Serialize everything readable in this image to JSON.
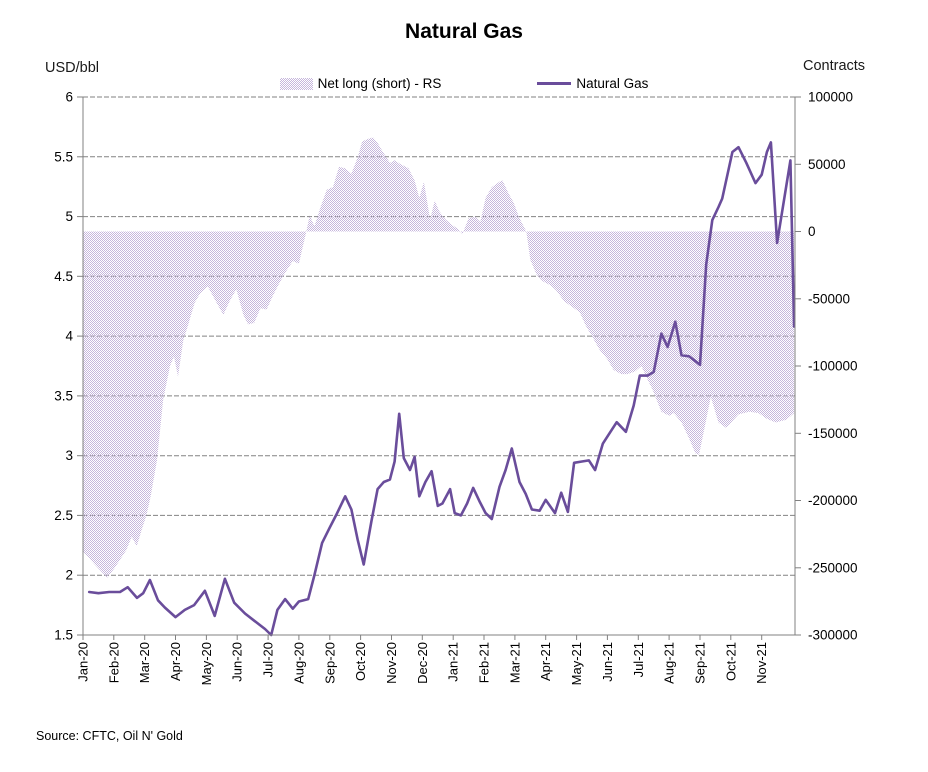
{
  "title": "Natural Gas",
  "source": "Source: CFTC, Oil N' Gold",
  "left_axis": {
    "label": "USD/bbl",
    "min": 1.5,
    "max": 6,
    "step": 0.5,
    "ticks": [
      "6",
      "5.5",
      "5",
      "4.5",
      "4",
      "3.5",
      "3",
      "2.5",
      "2",
      "1.5"
    ]
  },
  "right_axis": {
    "label": "Contracts",
    "min": -300000,
    "max": 100000,
    "step": 50000,
    "ticks": [
      "100000",
      "50000",
      "0",
      "-50000",
      "-100000",
      "-150000",
      "-200000",
      "-250000",
      "-300000"
    ]
  },
  "legend": [
    {
      "label": "Net long (short) - RS",
      "type": "area"
    },
    {
      "label": "Natural Gas",
      "type": "line"
    }
  ],
  "colors": {
    "line": "#6a4d9b",
    "area_fill": "#c6b6dc",
    "gridline": "#828282",
    "axis": "#808080",
    "text": "#000000"
  },
  "chart_data": {
    "type": "combo (area + line)",
    "title": "Natural Gas",
    "x_unit": "months since Jan-2020 (weekly samples)",
    "categories": [
      "Jan-20",
      "Feb-20",
      "Mar-20",
      "Apr-20",
      "May-20",
      "Jun-20",
      "Jul-20",
      "Aug-20",
      "Sep-20",
      "Oct-20",
      "Nov-20",
      "Dec-20",
      "Jan-21",
      "Feb-21",
      "Mar-21",
      "Apr-21",
      "May-21",
      "Jun-21",
      "Jul-21",
      "Aug-21",
      "Sep-21",
      "Oct-21",
      "Nov-21"
    ],
    "xlim": [
      0,
      23.08
    ],
    "ylim_left": [
      1.5,
      6
    ],
    "ylim_right": [
      -300000,
      100000
    ],
    "grid": "horizontal, every 0.5 USD",
    "legend_position": "top-center",
    "series": [
      {
        "name": "Net long (short) - RS",
        "type": "area",
        "axis": "right",
        "baseline": 0,
        "points": [
          [
            0.0,
            -238000
          ],
          [
            0.2,
            -243000
          ],
          [
            0.4,
            -248000
          ],
          [
            0.6,
            -253000
          ],
          [
            0.78,
            -257500
          ],
          [
            1.0,
            -251000
          ],
          [
            1.2,
            -244000
          ],
          [
            1.4,
            -237000
          ],
          [
            1.58,
            -227000
          ],
          [
            1.74,
            -234000
          ],
          [
            1.9,
            -222000
          ],
          [
            2.06,
            -211000
          ],
          [
            2.2,
            -196000
          ],
          [
            2.4,
            -170000
          ],
          [
            2.6,
            -125000
          ],
          [
            2.82,
            -100000
          ],
          [
            2.95,
            -93000
          ],
          [
            3.08,
            -108000
          ],
          [
            3.25,
            -81000
          ],
          [
            3.4,
            -70000
          ],
          [
            3.62,
            -53000
          ],
          [
            3.8,
            -46000
          ],
          [
            4.05,
            -41000
          ],
          [
            4.33,
            -53000
          ],
          [
            4.55,
            -62000
          ],
          [
            4.75,
            -52000
          ],
          [
            4.97,
            -43000
          ],
          [
            5.2,
            -62000
          ],
          [
            5.35,
            -69000
          ],
          [
            5.55,
            -68000
          ],
          [
            5.75,
            -57000
          ],
          [
            5.95,
            -58000
          ],
          [
            6.15,
            -48000
          ],
          [
            6.35,
            -39000
          ],
          [
            6.6,
            -29000
          ],
          [
            6.8,
            -22000
          ],
          [
            7.0,
            -24000
          ],
          [
            7.12,
            -12000
          ],
          [
            7.22,
            -2000
          ],
          [
            7.35,
            12000
          ],
          [
            7.5,
            4000
          ],
          [
            7.7,
            18000
          ],
          [
            7.9,
            31000
          ],
          [
            8.1,
            33000
          ],
          [
            8.3,
            48000
          ],
          [
            8.5,
            47000
          ],
          [
            8.7,
            43000
          ],
          [
            8.9,
            55000
          ],
          [
            9.05,
            67000
          ],
          [
            9.25,
            69000
          ],
          [
            9.4,
            70000
          ],
          [
            9.55,
            66000
          ],
          [
            9.7,
            60000
          ],
          [
            9.95,
            51000
          ],
          [
            10.1,
            53000
          ],
          [
            10.3,
            50000
          ],
          [
            10.55,
            47000
          ],
          [
            10.75,
            38000
          ],
          [
            10.9,
            25000
          ],
          [
            11.05,
            37000
          ],
          [
            11.25,
            9000
          ],
          [
            11.4,
            23000
          ],
          [
            11.55,
            15000
          ],
          [
            11.75,
            9000
          ],
          [
            11.95,
            5000
          ],
          [
            12.15,
            2000
          ],
          [
            12.3,
            -2000
          ],
          [
            12.5,
            10000
          ],
          [
            12.72,
            11000
          ],
          [
            12.88,
            7000
          ],
          [
            13.05,
            25000
          ],
          [
            13.25,
            33000
          ],
          [
            13.5,
            37000
          ],
          [
            13.6,
            38000
          ],
          [
            13.8,
            28000
          ],
          [
            13.95,
            22000
          ],
          [
            14.15,
            10000
          ],
          [
            14.37,
            0
          ],
          [
            14.5,
            -21000
          ],
          [
            14.7,
            -32000
          ],
          [
            14.9,
            -37000
          ],
          [
            15.15,
            -40000
          ],
          [
            15.35,
            -44000
          ],
          [
            15.6,
            -52000
          ],
          [
            15.85,
            -56000
          ],
          [
            16.1,
            -60000
          ],
          [
            16.3,
            -70000
          ],
          [
            16.55,
            -80000
          ],
          [
            16.75,
            -88000
          ],
          [
            17.0,
            -95000
          ],
          [
            17.2,
            -103000
          ],
          [
            17.45,
            -106000
          ],
          [
            17.65,
            -106000
          ],
          [
            17.9,
            -104000
          ],
          [
            18.1,
            -100000
          ],
          [
            18.3,
            -110000
          ],
          [
            18.45,
            -117000
          ],
          [
            18.75,
            -134000
          ],
          [
            19.0,
            -137000
          ],
          [
            19.15,
            -135000
          ],
          [
            19.4,
            -142000
          ],
          [
            19.65,
            -154000
          ],
          [
            19.85,
            -165000
          ],
          [
            19.97,
            -166000
          ],
          [
            20.2,
            -140000
          ],
          [
            20.35,
            -123000
          ],
          [
            20.6,
            -142000
          ],
          [
            20.85,
            -146000
          ],
          [
            21.05,
            -141000
          ],
          [
            21.25,
            -136000
          ],
          [
            21.6,
            -134000
          ],
          [
            21.9,
            -135000
          ],
          [
            22.15,
            -139000
          ],
          [
            22.45,
            -142000
          ],
          [
            22.8,
            -140000
          ],
          [
            23.05,
            -135000
          ]
        ]
      },
      {
        "name": "Natural Gas",
        "type": "line",
        "axis": "left",
        "points": [
          [
            0.2,
            1.86
          ],
          [
            0.5,
            1.85
          ],
          [
            0.85,
            1.86
          ],
          [
            1.2,
            1.86
          ],
          [
            1.45,
            1.9
          ],
          [
            1.75,
            1.81
          ],
          [
            1.95,
            1.85
          ],
          [
            2.17,
            1.96
          ],
          [
            2.43,
            1.79
          ],
          [
            2.65,
            1.73
          ],
          [
            3.0,
            1.65
          ],
          [
            3.3,
            1.71
          ],
          [
            3.6,
            1.75
          ],
          [
            3.95,
            1.87
          ],
          [
            4.27,
            1.66
          ],
          [
            4.6,
            1.97
          ],
          [
            4.9,
            1.77
          ],
          [
            5.25,
            1.68
          ],
          [
            5.55,
            1.62
          ],
          [
            5.9,
            1.55
          ],
          [
            6.1,
            1.5
          ],
          [
            6.3,
            1.71
          ],
          [
            6.55,
            1.8
          ],
          [
            6.8,
            1.72
          ],
          [
            7.0,
            1.78
          ],
          [
            7.3,
            1.8
          ],
          [
            7.5,
            2.0
          ],
          [
            7.75,
            2.27
          ],
          [
            8.0,
            2.4
          ],
          [
            8.2,
            2.5
          ],
          [
            8.5,
            2.66
          ],
          [
            8.7,
            2.55
          ],
          [
            8.9,
            2.3
          ],
          [
            9.1,
            2.09
          ],
          [
            9.35,
            2.45
          ],
          [
            9.55,
            2.72
          ],
          [
            9.75,
            2.78
          ],
          [
            9.95,
            2.8
          ],
          [
            10.1,
            2.95
          ],
          [
            10.25,
            3.35
          ],
          [
            10.4,
            2.98
          ],
          [
            10.6,
            2.88
          ],
          [
            10.75,
            2.99
          ],
          [
            10.9,
            2.66
          ],
          [
            11.1,
            2.78
          ],
          [
            11.3,
            2.87
          ],
          [
            11.5,
            2.58
          ],
          [
            11.65,
            2.6
          ],
          [
            11.9,
            2.72
          ],
          [
            12.05,
            2.52
          ],
          [
            12.25,
            2.5
          ],
          [
            12.45,
            2.6
          ],
          [
            12.65,
            2.73
          ],
          [
            12.85,
            2.62
          ],
          [
            13.05,
            2.52
          ],
          [
            13.25,
            2.47
          ],
          [
            13.5,
            2.74
          ],
          [
            13.7,
            2.88
          ],
          [
            13.9,
            3.06
          ],
          [
            14.15,
            2.78
          ],
          [
            14.35,
            2.68
          ],
          [
            14.55,
            2.55
          ],
          [
            14.8,
            2.54
          ],
          [
            15.0,
            2.63
          ],
          [
            15.3,
            2.52
          ],
          [
            15.5,
            2.69
          ],
          [
            15.72,
            2.53
          ],
          [
            15.92,
            2.94
          ],
          [
            16.15,
            2.95
          ],
          [
            16.4,
            2.96
          ],
          [
            16.6,
            2.88
          ],
          [
            16.85,
            3.1
          ],
          [
            17.05,
            3.18
          ],
          [
            17.3,
            3.28
          ],
          [
            17.6,
            3.2
          ],
          [
            17.85,
            3.42
          ],
          [
            18.05,
            3.67
          ],
          [
            18.3,
            3.67
          ],
          [
            18.5,
            3.7
          ],
          [
            18.75,
            4.02
          ],
          [
            18.95,
            3.91
          ],
          [
            19.2,
            4.12
          ],
          [
            19.4,
            3.84
          ],
          [
            19.65,
            3.83
          ],
          [
            19.85,
            3.79
          ],
          [
            20.0,
            3.76
          ],
          [
            20.2,
            4.6
          ],
          [
            20.4,
            4.97
          ],
          [
            20.6,
            5.08
          ],
          [
            20.72,
            5.15
          ],
          [
            21.05,
            5.54
          ],
          [
            21.25,
            5.58
          ],
          [
            21.5,
            5.45
          ],
          [
            21.8,
            5.28
          ],
          [
            22.0,
            5.35
          ],
          [
            22.17,
            5.54
          ],
          [
            22.3,
            5.62
          ],
          [
            22.5,
            4.78
          ],
          [
            22.93,
            5.47
          ],
          [
            23.05,
            4.08
          ]
        ]
      }
    ]
  }
}
